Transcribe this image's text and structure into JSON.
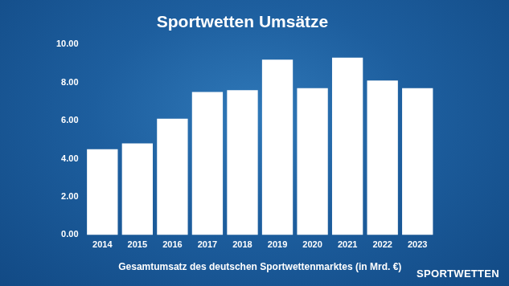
{
  "chart_data": {
    "type": "bar",
    "title": "Sportwetten Umsätze",
    "x_label": "Gesamtumsatz des deutschen Sportwettenmarktes (in Mrd. €)",
    "categories": [
      "2014",
      "2015",
      "2016",
      "2017",
      "2018",
      "2019",
      "2020",
      "2021",
      "2022",
      "2023"
    ],
    "values": [
      4.5,
      4.8,
      6.1,
      7.5,
      7.6,
      9.2,
      7.7,
      9.3,
      8.1,
      7.7
    ],
    "color": "#ffffff",
    "ylim": [
      0,
      10
    ],
    "yticks": [
      {
        "value": 0,
        "label": "0.00"
      },
      {
        "value": 2,
        "label": "2.00"
      },
      {
        "value": 4,
        "label": "4.00"
      },
      {
        "value": 6,
        "label": "6.00"
      },
      {
        "value": 8,
        "label": "8.00"
      },
      {
        "value": 10,
        "label": "10.00"
      }
    ],
    "grid": false,
    "annotations": [
      "SPORTWETTEN"
    ]
  }
}
